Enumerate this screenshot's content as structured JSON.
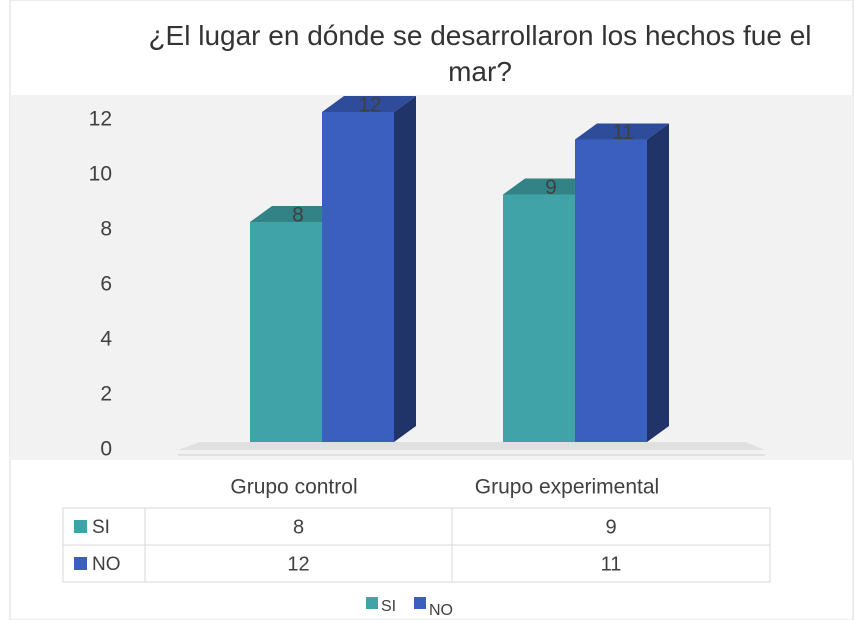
{
  "chart_data": {
    "type": "bar3d",
    "title": "¿El lugar en dónde se desarrollaron los hechos fue el mar?",
    "categories": [
      "Grupo control",
      "Grupo experimental"
    ],
    "series": [
      {
        "name": "SI",
        "color": "#3fa3a8",
        "values": [
          8,
          9
        ]
      },
      {
        "name": "NO",
        "color": "#3a5fbf",
        "values": [
          12,
          11
        ]
      }
    ],
    "ylim": [
      0,
      12
    ],
    "yticks": [
      0,
      2,
      4,
      6,
      8,
      10,
      12
    ],
    "data_table": true,
    "legend": "bottom"
  }
}
